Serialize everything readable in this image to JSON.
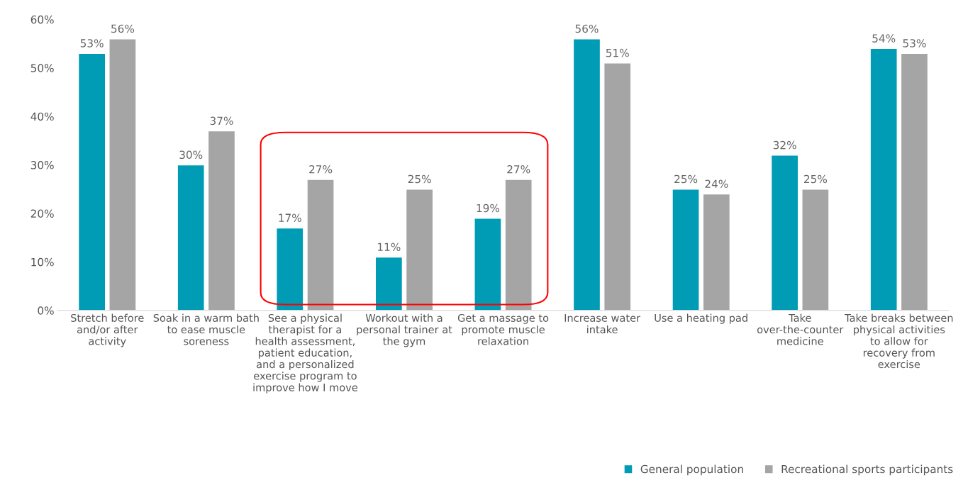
{
  "chart_data": {
    "type": "bar",
    "categories": [
      "Stretch before and/or after activity",
      "Soak in a warm bath to ease muscle soreness",
      "See a physical therapist for a health assessment, patient education, and a personalized exercise program to improve how I move",
      "Workout with a personal trainer at the gym",
      "Get a massage to promote muscle relaxation",
      "Increase water intake",
      "Use a heating pad",
      "Take over-the-counter medicine",
      "Take breaks between physical activities to allow for recovery from exercise"
    ],
    "series": [
      {
        "name": "General population",
        "color": "#009cb6",
        "values": [
          53,
          30,
          17,
          11,
          19,
          56,
          25,
          32,
          54
        ]
      },
      {
        "name": "Recreational sports participants",
        "color": "#a5a5a5",
        "values": [
          56,
          37,
          27,
          25,
          27,
          51,
          24,
          25,
          53
        ]
      }
    ],
    "value_labels": [
      [
        "53%",
        "30%",
        "17%",
        "11%",
        "19%",
        "56%",
        "25%",
        "32%",
        "54%"
      ],
      [
        "56%",
        "37%",
        "27%",
        "25%",
        "27%",
        "51%",
        "24%",
        "25%",
        "53%"
      ]
    ],
    "ylim": [
      0,
      60
    ],
    "yticks": [
      {
        "value": 0,
        "label": "0%"
      },
      {
        "value": 10,
        "label": "10%"
      },
      {
        "value": 20,
        "label": "20%"
      },
      {
        "value": 30,
        "label": "30%"
      },
      {
        "value": 40,
        "label": "40%"
      },
      {
        "value": 50,
        "label": "50%"
      },
      {
        "value": 60,
        "label": "60%"
      }
    ],
    "grid": false,
    "legend": "bottom right"
  }
}
